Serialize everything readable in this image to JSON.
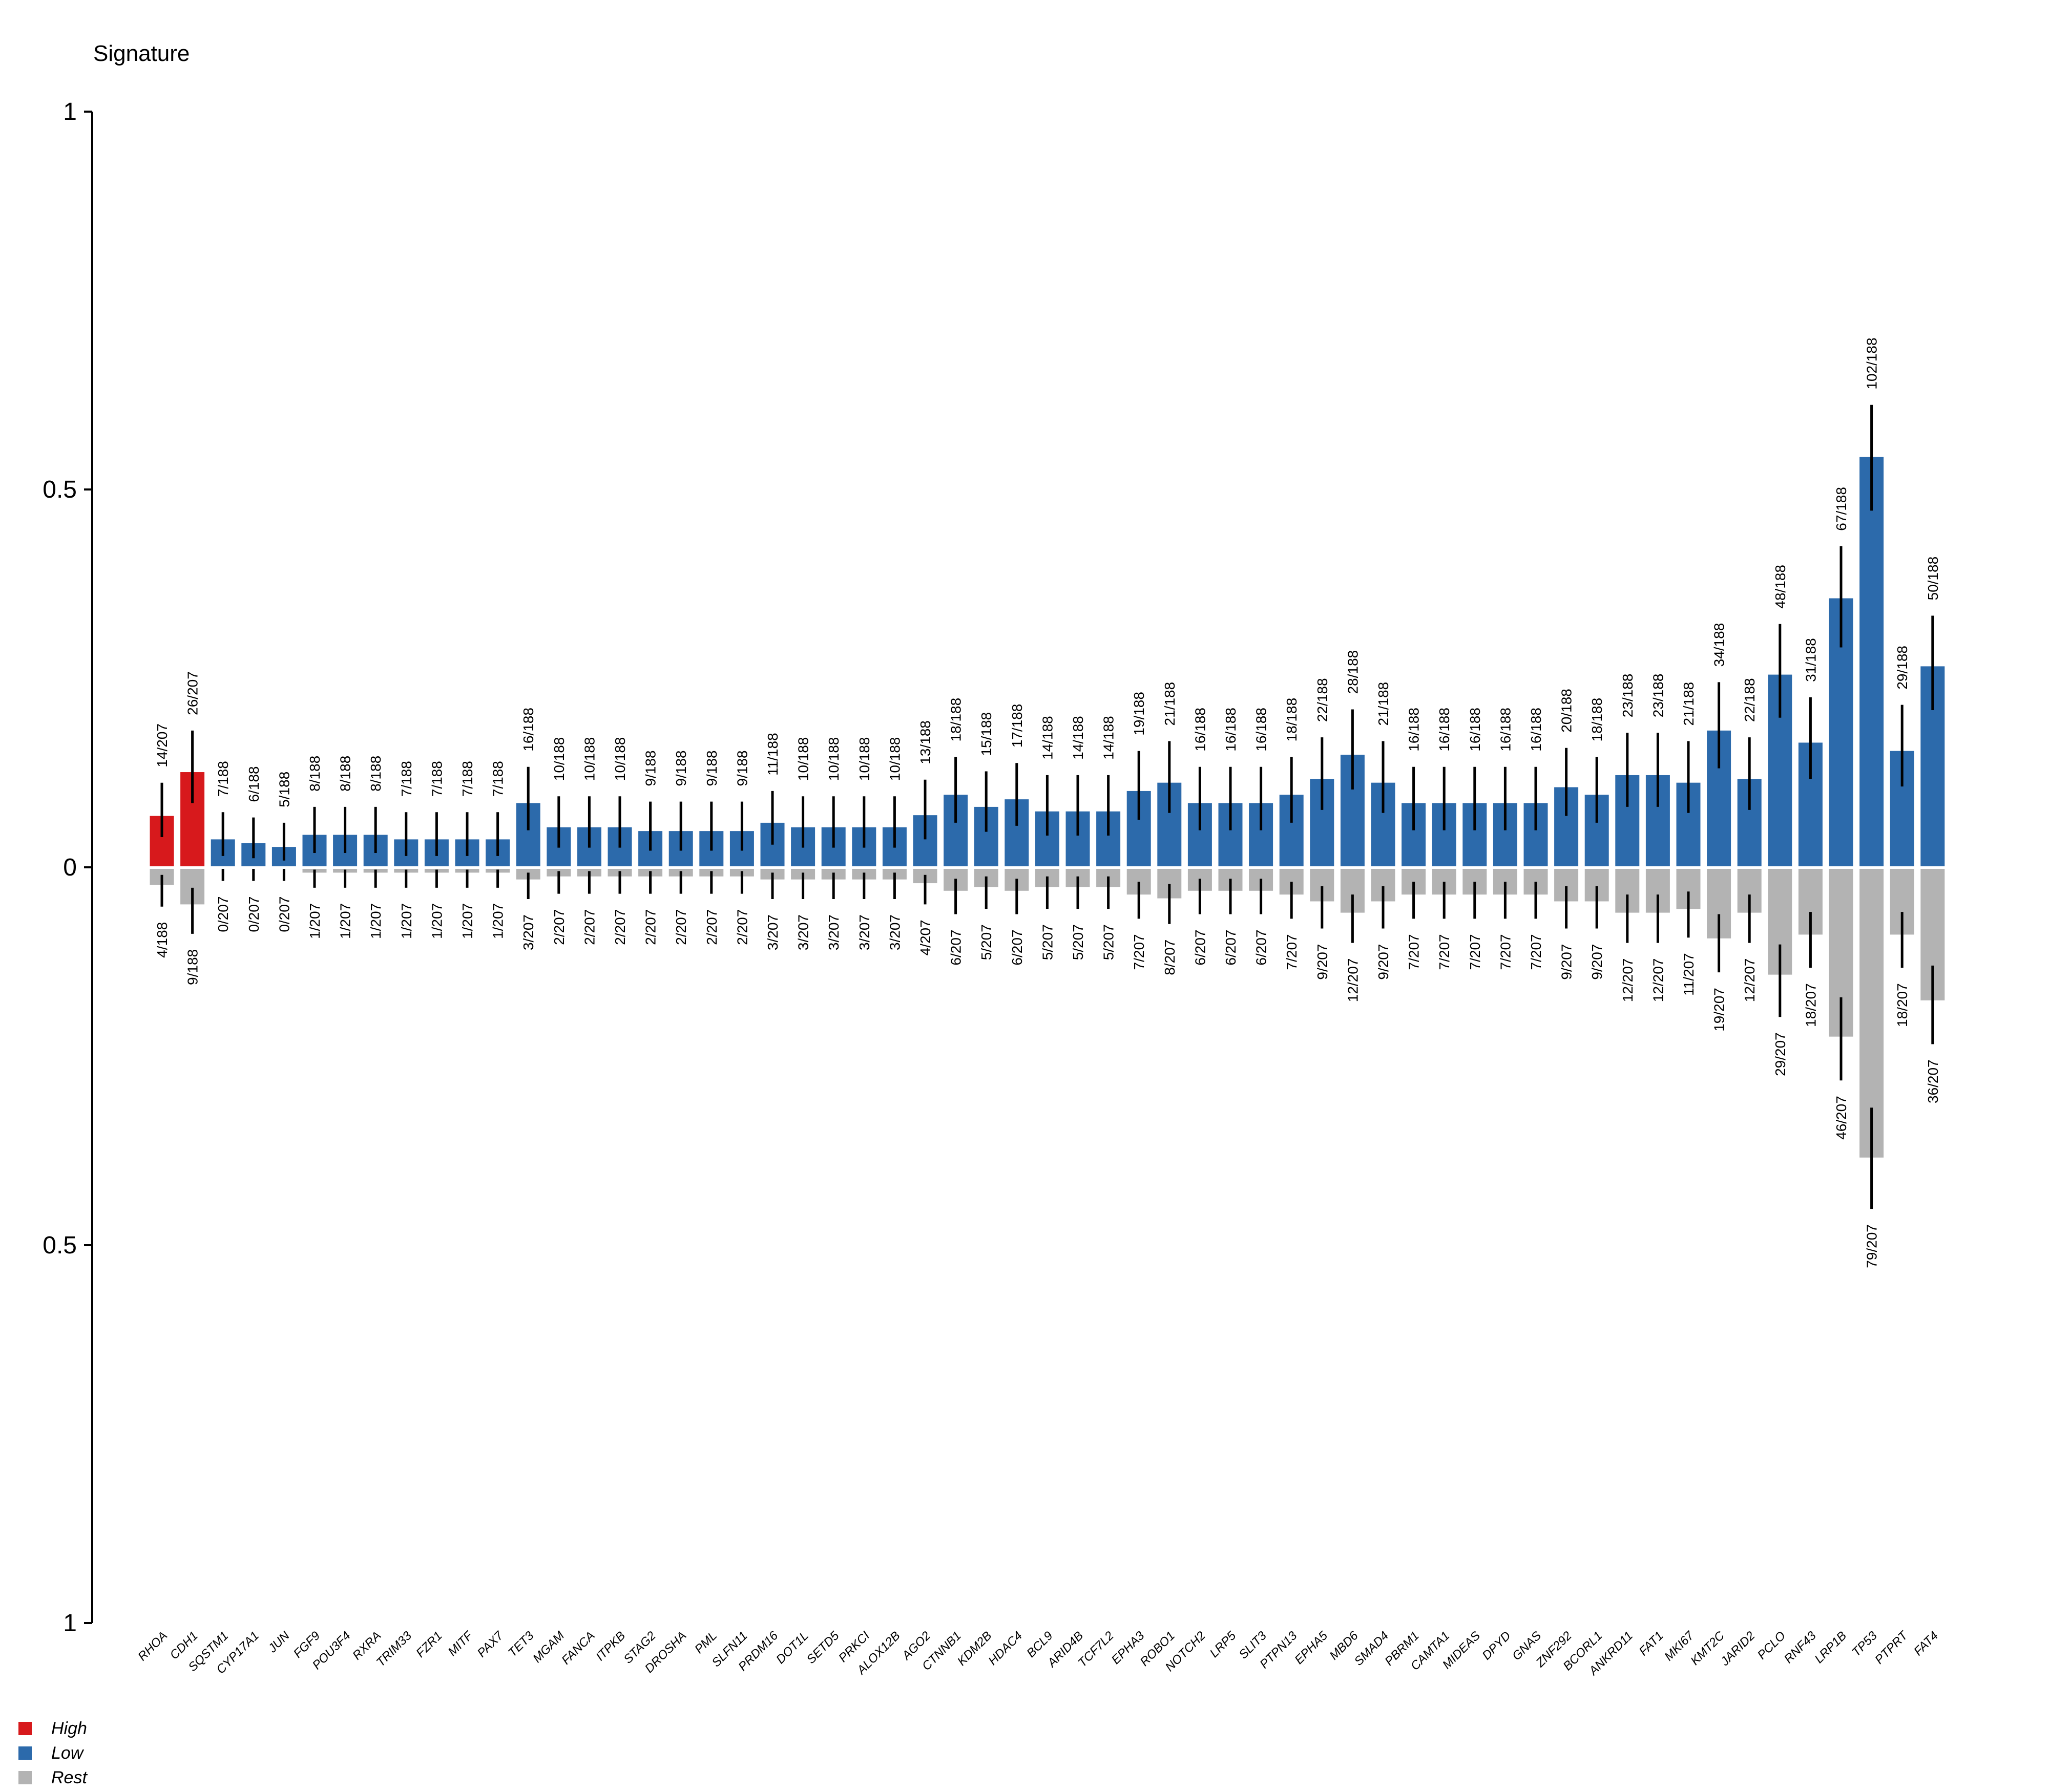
{
  "title": "Signature",
  "colors": {
    "high": "#d7191c",
    "low": "#2c6aab",
    "rest": "#b3b3b3",
    "axis": "#000000"
  },
  "legend": [
    {
      "label": "High",
      "color": "#d7191c"
    },
    {
      "label": "Low",
      "color": "#2c6aab"
    },
    {
      "label": "Rest",
      "color": "#b3b3b3"
    }
  ],
  "chart_data": {
    "type": "bar",
    "title": "Signature",
    "layout": "mirrored",
    "ylim": [
      -1,
      1
    ],
    "ytick_labels": [
      "1",
      "0.5",
      "0",
      "0.5",
      "1"
    ],
    "ytick_values": [
      1,
      0.5,
      0,
      -0.5,
      -1
    ],
    "categories": [
      "RHOA",
      "CDH1",
      "SQSTM1",
      "CYP17A1",
      "JUN",
      "FGF9",
      "POU3F4",
      "RXRA",
      "TRIM33",
      "FZR1",
      "MITF",
      "PAX7",
      "TET3",
      "MGAM",
      "FANCA",
      "ITPKB",
      "STAG2",
      "DROSHA",
      "PML",
      "SLFN11",
      "PRDM16",
      "DOT1L",
      "SETD5",
      "PRKCI",
      "ALOX12B",
      "AGO2",
      "CTNNB1",
      "KDM2B",
      "HDAC4",
      "BCL9",
      "ARID4B",
      "TCF7L2",
      "EPHA3",
      "ROBO1",
      "NOTCH2",
      "LRP5",
      "SLIT3",
      "PTPN13",
      "EPHA5",
      "MBD6",
      "SMAD4",
      "PBRM1",
      "CAMTA1",
      "MIDEAS",
      "DPYD",
      "GNAS",
      "ZNF292",
      "BCORL1",
      "ANKRD11",
      "FAT1",
      "MKI67",
      "KMT2C",
      "JARID2",
      "PCLO",
      "RNF43",
      "LRP1B",
      "TP53",
      "PTPRT",
      "FAT4"
    ],
    "series": [
      {
        "name": "Signature group",
        "groups": [
          "High",
          "High",
          "Low",
          "Low",
          "Low",
          "Low",
          "Low",
          "Low",
          "Low",
          "Low",
          "Low",
          "Low",
          "Low",
          "Low",
          "Low",
          "Low",
          "Low",
          "Low",
          "Low",
          "Low",
          "Low",
          "Low",
          "Low",
          "Low",
          "Low",
          "Low",
          "Low",
          "Low",
          "Low",
          "Low",
          "Low",
          "Low",
          "Low",
          "Low",
          "Low",
          "Low",
          "Low",
          "Low",
          "Low",
          "Low",
          "Low",
          "Low",
          "Low",
          "Low",
          "Low",
          "Low",
          "Low",
          "Low",
          "Low",
          "Low",
          "Low",
          "Low",
          "Low",
          "Low",
          "Low",
          "Low",
          "Low",
          "Low",
          "Low"
        ],
        "values": [
          0.068,
          0.126,
          0.037,
          0.032,
          0.027,
          0.043,
          0.043,
          0.043,
          0.037,
          0.037,
          0.037,
          0.037,
          0.085,
          0.053,
          0.053,
          0.053,
          0.048,
          0.048,
          0.048,
          0.048,
          0.059,
          0.053,
          0.053,
          0.053,
          0.053,
          0.069,
          0.096,
          0.08,
          0.09,
          0.074,
          0.074,
          0.074,
          0.101,
          0.112,
          0.085,
          0.085,
          0.085,
          0.096,
          0.117,
          0.149,
          0.112,
          0.085,
          0.085,
          0.085,
          0.085,
          0.085,
          0.106,
          0.096,
          0.122,
          0.122,
          0.112,
          0.181,
          0.117,
          0.255,
          0.165,
          0.356,
          0.543,
          0.154,
          0.266
        ],
        "ci_low": [
          0.04,
          0.085,
          0.015,
          0.012,
          0.009,
          0.019,
          0.019,
          0.019,
          0.015,
          0.015,
          0.015,
          0.015,
          0.049,
          0.026,
          0.026,
          0.026,
          0.022,
          0.022,
          0.022,
          0.022,
          0.03,
          0.026,
          0.026,
          0.026,
          0.026,
          0.037,
          0.059,
          0.047,
          0.055,
          0.042,
          0.042,
          0.042,
          0.063,
          0.072,
          0.049,
          0.049,
          0.049,
          0.059,
          0.076,
          0.103,
          0.072,
          0.049,
          0.049,
          0.049,
          0.049,
          0.049,
          0.068,
          0.059,
          0.08,
          0.08,
          0.072,
          0.131,
          0.076,
          0.198,
          0.117,
          0.291,
          0.472,
          0.107,
          0.208
        ],
        "ci_high": [
          0.112,
          0.181,
          0.073,
          0.066,
          0.059,
          0.08,
          0.08,
          0.08,
          0.073,
          0.073,
          0.073,
          0.073,
          0.133,
          0.094,
          0.094,
          0.094,
          0.087,
          0.087,
          0.087,
          0.087,
          0.101,
          0.094,
          0.094,
          0.094,
          0.094,
          0.116,
          0.146,
          0.127,
          0.138,
          0.122,
          0.122,
          0.122,
          0.154,
          0.167,
          0.133,
          0.133,
          0.133,
          0.146,
          0.172,
          0.209,
          0.167,
          0.133,
          0.133,
          0.133,
          0.133,
          0.133,
          0.158,
          0.146,
          0.178,
          0.178,
          0.167,
          0.245,
          0.172,
          0.322,
          0.225,
          0.425,
          0.612,
          0.215,
          0.333
        ],
        "labels": [
          "14/207",
          "26/207",
          "7/188",
          "6/188",
          "5/188",
          "8/188",
          "8/188",
          "8/188",
          "7/188",
          "7/188",
          "7/188",
          "7/188",
          "16/188",
          "10/188",
          "10/188",
          "10/188",
          "9/188",
          "9/188",
          "9/188",
          "9/188",
          "11/188",
          "10/188",
          "10/188",
          "10/188",
          "10/188",
          "13/188",
          "18/188",
          "15/188",
          "17/188",
          "14/188",
          "14/188",
          "14/188",
          "19/188",
          "21/188",
          "16/188",
          "16/188",
          "16/188",
          "18/188",
          "22/188",
          "28/188",
          "21/188",
          "16/188",
          "16/188",
          "16/188",
          "16/188",
          "16/188",
          "20/188",
          "18/188",
          "23/188",
          "23/188",
          "21/188",
          "34/188",
          "22/188",
          "48/188",
          "31/188",
          "67/188",
          "102/188",
          "29/188",
          "50/188"
        ]
      },
      {
        "name": "Rest",
        "values": [
          0.021,
          0.047,
          0.0,
          0.0,
          0.0,
          0.005,
          0.005,
          0.005,
          0.005,
          0.005,
          0.005,
          0.005,
          0.014,
          0.01,
          0.01,
          0.01,
          0.01,
          0.01,
          0.01,
          0.01,
          0.014,
          0.014,
          0.014,
          0.014,
          0.014,
          0.019,
          0.029,
          0.024,
          0.029,
          0.024,
          0.024,
          0.024,
          0.034,
          0.039,
          0.029,
          0.029,
          0.029,
          0.034,
          0.043,
          0.058,
          0.043,
          0.034,
          0.034,
          0.034,
          0.034,
          0.034,
          0.043,
          0.043,
          0.058,
          0.058,
          0.053,
          0.092,
          0.058,
          0.14,
          0.087,
          0.222,
          0.382,
          0.087,
          0.174
        ],
        "ci_low": [
          0.008,
          0.025,
          0.0,
          0.0,
          0.0,
          0.001,
          0.001,
          0.001,
          0.001,
          0.001,
          0.001,
          0.001,
          0.005,
          0.003,
          0.003,
          0.003,
          0.003,
          0.003,
          0.003,
          0.003,
          0.005,
          0.005,
          0.005,
          0.005,
          0.005,
          0.008,
          0.013,
          0.01,
          0.013,
          0.01,
          0.01,
          0.01,
          0.017,
          0.02,
          0.013,
          0.013,
          0.013,
          0.017,
          0.023,
          0.034,
          0.023,
          0.017,
          0.017,
          0.017,
          0.017,
          0.017,
          0.023,
          0.023,
          0.034,
          0.034,
          0.03,
          0.06,
          0.034,
          0.1,
          0.057,
          0.17,
          0.316,
          0.057,
          0.128
        ],
        "ci_high": [
          0.052,
          0.088,
          0.018,
          0.018,
          0.018,
          0.027,
          0.027,
          0.027,
          0.027,
          0.027,
          0.027,
          0.027,
          0.042,
          0.035,
          0.035,
          0.035,
          0.035,
          0.035,
          0.035,
          0.035,
          0.042,
          0.042,
          0.042,
          0.042,
          0.042,
          0.049,
          0.062,
          0.055,
          0.062,
          0.055,
          0.055,
          0.055,
          0.068,
          0.075,
          0.062,
          0.062,
          0.062,
          0.068,
          0.081,
          0.1,
          0.081,
          0.068,
          0.068,
          0.068,
          0.068,
          0.068,
          0.081,
          0.081,
          0.1,
          0.1,
          0.093,
          0.139,
          0.1,
          0.198,
          0.133,
          0.282,
          0.452,
          0.133,
          0.234
        ],
        "labels": [
          "4/188",
          "9/188",
          "0/207",
          "0/207",
          "0/207",
          "1/207",
          "1/207",
          "1/207",
          "1/207",
          "1/207",
          "1/207",
          "1/207",
          "3/207",
          "2/207",
          "2/207",
          "2/207",
          "2/207",
          "2/207",
          "2/207",
          "2/207",
          "3/207",
          "3/207",
          "3/207",
          "3/207",
          "3/207",
          "4/207",
          "6/207",
          "5/207",
          "6/207",
          "5/207",
          "5/207",
          "5/207",
          "7/207",
          "8/207",
          "6/207",
          "6/207",
          "6/207",
          "7/207",
          "9/207",
          "12/207",
          "9/207",
          "7/207",
          "7/207",
          "7/207",
          "7/207",
          "7/207",
          "9/207",
          "9/207",
          "12/207",
          "12/207",
          "11/207",
          "19/207",
          "12/207",
          "29/207",
          "18/207",
          "46/207",
          "79/207",
          "18/207",
          "36/207"
        ]
      }
    ]
  }
}
